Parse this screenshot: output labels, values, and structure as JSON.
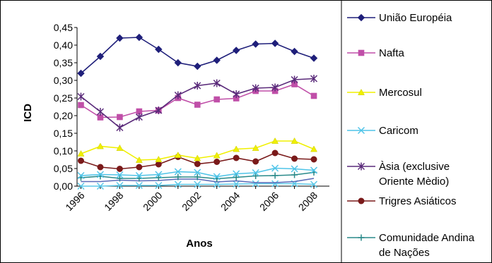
{
  "chart_data": {
    "type": "line",
    "xlabel": "Anos",
    "ylabel": "ICD",
    "ylim": [
      0,
      0.45
    ],
    "yticks": [
      "0,00",
      "0,05",
      "0,10",
      "0,15",
      "0,20",
      "0,25",
      "0,30",
      "0,35",
      "0,40",
      "0,45"
    ],
    "x": [
      1996,
      1997,
      1998,
      1999,
      2000,
      2001,
      2002,
      2003,
      2004,
      2005,
      2006,
      2007,
      2008
    ],
    "xticks": [
      "1996",
      "1998",
      "2000",
      "2002",
      "2004",
      "2006",
      "2008"
    ],
    "grid": false,
    "legend_position": "right",
    "series": [
      {
        "name": "União Européia",
        "color": "#1f1f7a",
        "marker": "diamond",
        "values": [
          0.32,
          0.368,
          0.42,
          0.422,
          0.388,
          0.35,
          0.34,
          0.357,
          0.385,
          0.403,
          0.405,
          0.382,
          0.363
        ]
      },
      {
        "name": "Nafta",
        "color": "#c04fa8",
        "marker": "square",
        "values": [
          0.23,
          0.195,
          0.196,
          0.212,
          0.215,
          0.25,
          0.231,
          0.246,
          0.249,
          0.27,
          0.27,
          0.289,
          0.256
        ]
      },
      {
        "name": "Mercosul",
        "color": "#f0f000",
        "marker": "triangle",
        "values": [
          0.092,
          0.113,
          0.108,
          0.074,
          0.076,
          0.088,
          0.079,
          0.087,
          0.105,
          0.108,
          0.128,
          0.128,
          0.105
        ]
      },
      {
        "name": "Caricom",
        "color": "#4fc4e8",
        "marker": "x",
        "values": [
          0.03,
          0.033,
          0.032,
          0.03,
          0.033,
          0.041,
          0.039,
          0.027,
          0.035,
          0.038,
          0.051,
          0.049,
          0.045
        ]
      },
      {
        "name": "Àsia (exclusive Oriente Mèdio)",
        "name_lines": [
          "Àsia (exclusive",
          "Oriente Mèdio)"
        ],
        "color": "#5a2a7a",
        "marker": "star",
        "values": [
          0.254,
          0.211,
          0.166,
          0.196,
          0.215,
          0.258,
          0.285,
          0.292,
          0.261,
          0.278,
          0.28,
          0.302,
          0.305
        ]
      },
      {
        "name": "Trigres Asiáticos",
        "color": "#7a1a1a",
        "marker": "circle",
        "values": [
          0.072,
          0.054,
          0.049,
          0.054,
          0.062,
          0.083,
          0.063,
          0.069,
          0.08,
          0.07,
          0.094,
          0.078,
          0.076
        ]
      },
      {
        "name": "Comunidade Andina de Nações",
        "name_lines": [
          "Comunidade Andina",
          "de Nações"
        ],
        "color": "#2a8a8a",
        "marker": "plus",
        "values": [
          0.024,
          0.028,
          0.022,
          0.022,
          0.024,
          0.026,
          0.026,
          0.021,
          0.025,
          0.029,
          0.03,
          0.032,
          0.039
        ]
      },
      {
        "name": "",
        "color": "#5a6ab8",
        "marker": "none",
        "values": [
          0.013,
          0.013,
          0.017,
          0.015,
          0.016,
          0.02,
          0.02,
          0.012,
          0.015,
          0.01,
          0.01,
          0.013,
          0.022
        ]
      },
      {
        "name": "",
        "color": "#5ac8e8",
        "marker": "x",
        "values": [
          0.0,
          0.0,
          0.002,
          0.002,
          0.002,
          0.005,
          0.005,
          0.005,
          0.006,
          0.007,
          0.007,
          0.007,
          0.005
        ]
      }
    ]
  }
}
